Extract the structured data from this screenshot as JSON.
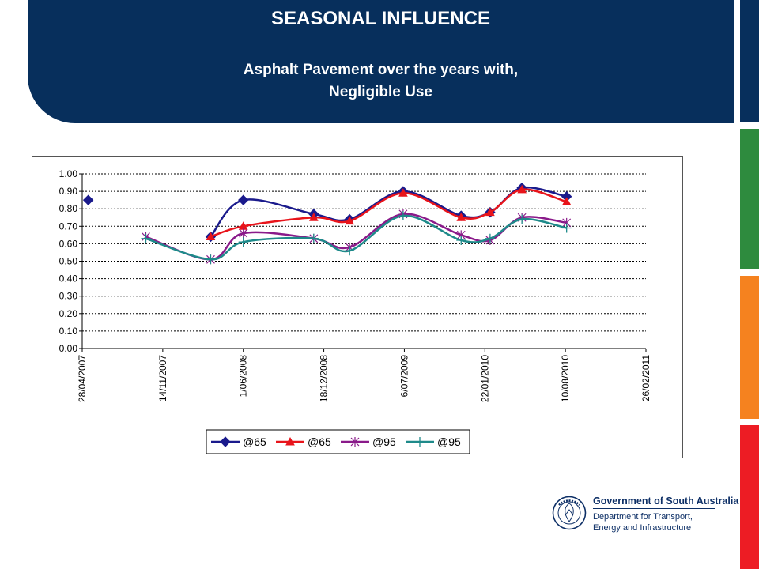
{
  "header": {
    "title": "SEASONAL INFLUENCE",
    "subtitle_line1": "Asphalt Pavement over the years with,",
    "subtitle_line2": "Negligible Use"
  },
  "colors": {
    "header_bg": "#072f5c",
    "side_bars": [
      "#072f5c",
      "#2e8b3e",
      "#f5821f",
      "#ed1c24"
    ]
  },
  "logo": {
    "line1": "Government of South Australia",
    "line2": "Department for Transport,",
    "line3": "Energy and Infrastructure"
  },
  "chart_data": {
    "type": "line",
    "y_ticks": [
      "0.00",
      "0.10",
      "0.20",
      "0.30",
      "0.40",
      "0.50",
      "0.60",
      "0.70",
      "0.80",
      "0.90",
      "1.00"
    ],
    "ylim": [
      0,
      1
    ],
    "x_ticks": [
      "28/04/2007",
      "14/11/2007",
      "1/06/2008",
      "18/12/2008",
      "6/07/2009",
      "22/01/2010",
      "10/08/2010",
      "26/02/2011"
    ],
    "xlim": [
      "2007-04-28",
      "2011-02-26"
    ],
    "grid": true,
    "legend_position": "bottom",
    "series": [
      {
        "name": "@65",
        "color": "#1a1a8c",
        "marker": "diamond",
        "points": [
          [
            "2007-05-13",
            0.85
          ],
          [
            "2008-03-12",
            0.64
          ],
          [
            "2008-06-01",
            0.85
          ],
          [
            "2008-11-23",
            0.77
          ],
          [
            "2009-02-20",
            0.74
          ],
          [
            "2009-07-03",
            0.9
          ],
          [
            "2009-11-24",
            0.76
          ],
          [
            "2010-02-04",
            0.78
          ],
          [
            "2010-04-24",
            0.92
          ],
          [
            "2010-08-13",
            0.87
          ]
        ]
      },
      {
        "name": "@65",
        "color": "#e8141b",
        "marker": "triangle",
        "points": [
          [
            "2008-03-12",
            0.64
          ],
          [
            "2008-06-01",
            0.7
          ],
          [
            "2008-11-23",
            0.75
          ],
          [
            "2009-02-20",
            0.73
          ],
          [
            "2009-07-03",
            0.89
          ],
          [
            "2009-11-24",
            0.75
          ],
          [
            "2010-02-04",
            0.78
          ],
          [
            "2010-04-24",
            0.91
          ],
          [
            "2010-08-13",
            0.84
          ]
        ]
      },
      {
        "name": "@95",
        "color": "#8a1a8a",
        "marker": "star",
        "points": [
          [
            "2007-10-03",
            0.64
          ],
          [
            "2008-03-12",
            0.51
          ],
          [
            "2008-06-01",
            0.66
          ],
          [
            "2008-11-23",
            0.63
          ],
          [
            "2009-02-20",
            0.58
          ],
          [
            "2009-07-03",
            0.77
          ],
          [
            "2009-11-24",
            0.65
          ],
          [
            "2010-02-04",
            0.62
          ],
          [
            "2010-04-24",
            0.75
          ],
          [
            "2010-08-13",
            0.72
          ]
        ]
      },
      {
        "name": "@95",
        "color": "#1e8a8a",
        "marker": "plus",
        "points": [
          [
            "2007-10-03",
            0.63
          ],
          [
            "2008-03-12",
            0.51
          ],
          [
            "2008-06-01",
            0.61
          ],
          [
            "2008-11-23",
            0.63
          ],
          [
            "2009-02-20",
            0.56
          ],
          [
            "2009-07-03",
            0.76
          ],
          [
            "2009-11-24",
            0.62
          ],
          [
            "2010-02-04",
            0.63
          ],
          [
            "2010-04-24",
            0.74
          ],
          [
            "2010-08-13",
            0.69
          ]
        ]
      }
    ]
  }
}
